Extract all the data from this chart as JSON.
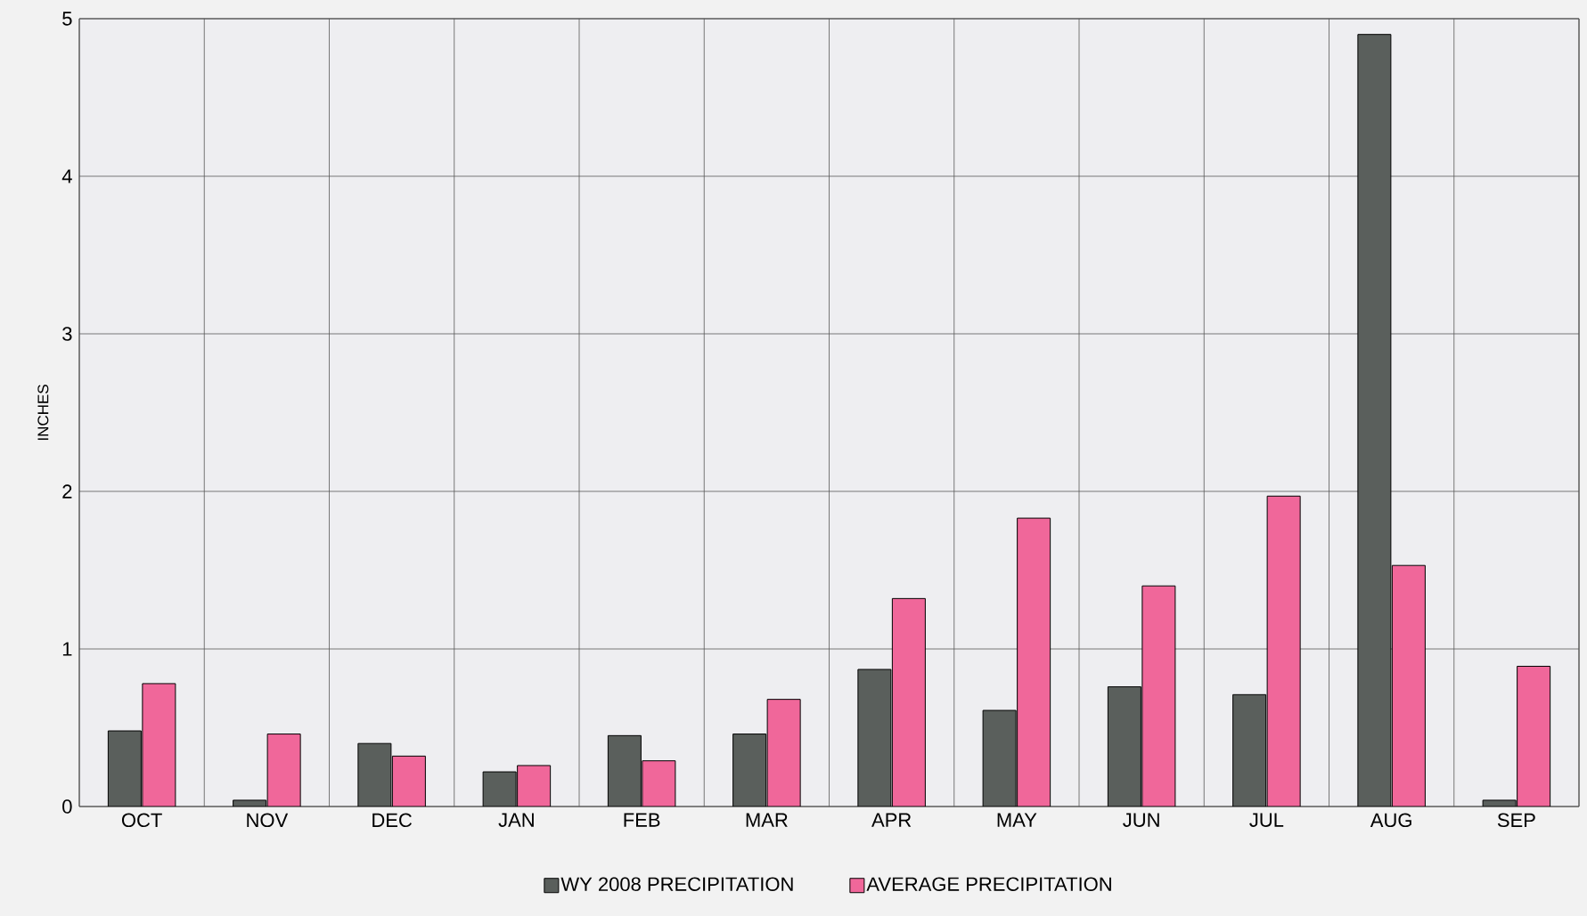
{
  "chart_data": {
    "type": "bar",
    "ylabel": "INCHES",
    "categories": [
      "OCT",
      "NOV",
      "DEC",
      "JAN",
      "FEB",
      "MAR",
      "APR",
      "MAY",
      "JUN",
      "JUL",
      "AUG",
      "SEP"
    ],
    "series": [
      {
        "name": "WY 2008 PRECIPITATION",
        "color": "#5a5f5c",
        "values": [
          0.48,
          0.04,
          0.4,
          0.22,
          0.45,
          0.46,
          0.87,
          0.61,
          0.76,
          0.71,
          4.9,
          0.04
        ]
      },
      {
        "name": "AVERAGE PRECIPITATION",
        "color": "#f0679a",
        "values": [
          0.78,
          0.46,
          0.32,
          0.26,
          0.29,
          0.68,
          1.32,
          1.83,
          1.4,
          1.97,
          1.53,
          0.89
        ]
      }
    ],
    "ylim": [
      0,
      5
    ],
    "yticks": [
      0,
      1,
      2,
      3,
      4,
      5
    ],
    "grid": true,
    "legend": "bottom"
  }
}
